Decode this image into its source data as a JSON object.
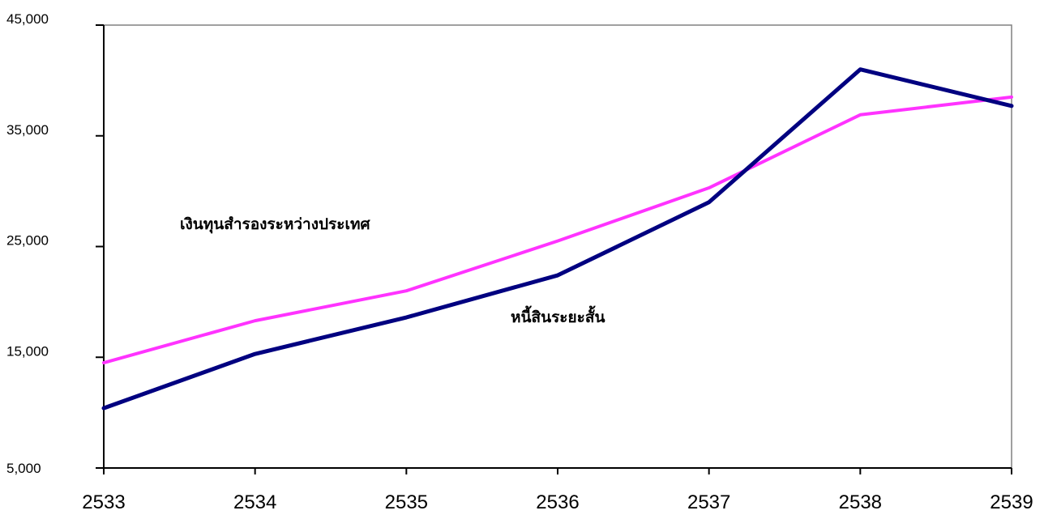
{
  "chart_data": {
    "type": "line",
    "x": [
      "2533",
      "2534",
      "2535",
      "2536",
      "2537",
      "2538",
      "2539"
    ],
    "ylim": [
      5000,
      45000
    ],
    "yticks": [
      "5,000",
      "15,000",
      "25,000",
      "35,000",
      "45,000"
    ],
    "ytick_values": [
      5000,
      15000,
      25000,
      35000,
      45000
    ],
    "grid": false,
    "series": [
      {
        "name": "เงินทุนสำรองระหว่างประเทศ",
        "color": "#ff33ff",
        "values": [
          14500,
          18300,
          21000,
          25500,
          30300,
          36900,
          38500
        ]
      },
      {
        "name": "หนี้สินระยะสั้น",
        "color": "#000080",
        "values": [
          10400,
          15300,
          18600,
          22400,
          29000,
          41000,
          37700
        ]
      }
    ]
  }
}
